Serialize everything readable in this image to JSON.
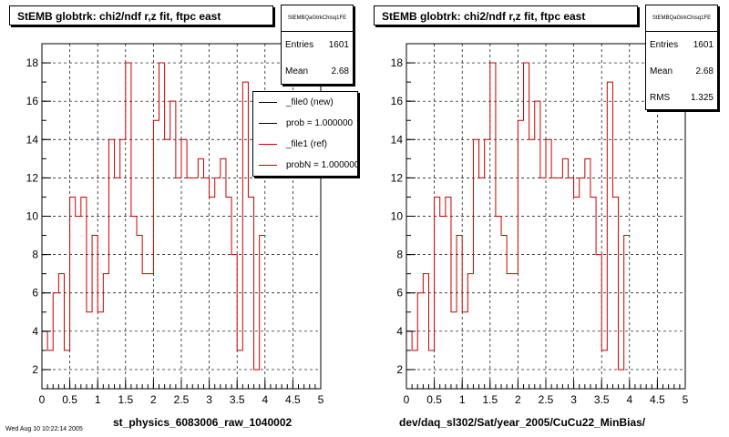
{
  "colors": {
    "hist": "#cc0000",
    "frame": "#000000",
    "legend_new": "#000000",
    "legend_ref": "#cc0000"
  },
  "left_pad": {
    "title": "StEMB globtrk: chi2/ndf r,z fit, ftpc east",
    "stats": {
      "name": "StEMBQaGtrkChisq1FE",
      "entries_label": "Entries",
      "entries": "1601",
      "mean_label": "Mean",
      "mean": "2.68"
    },
    "legend": [
      {
        "label": "_file0 (new)",
        "color": "#000000"
      },
      {
        "label": "prob = 1.000000",
        "color": "#000000"
      },
      {
        "label": "_file1 (ref)",
        "color": "#cc0000"
      },
      {
        "label": "probN = 1.000000",
        "color": "#cc0000"
      }
    ],
    "xtitle": "st_physics_6083006_raw_1040002",
    "footer": "Wed Aug 10 10:22:14 2005"
  },
  "right_pad": {
    "title": "StEMB globtrk: chi2/ndf r,z fit, ftpc east",
    "stats": {
      "name": "StEMBQaGtrkChisq1FE",
      "entries_label": "Entries",
      "entries": "1601",
      "mean_label": "Mean",
      "mean": "2.68",
      "rms_label": "RMS",
      "rms": "1.325"
    },
    "xtitle": "dev/daq_sl302/Sat/year_2005/CuCu22_MinBias/"
  },
  "chart_data": [
    {
      "type": "step",
      "xlim": [
        0,
        5
      ],
      "ylim": [
        1,
        19
      ],
      "grid": true,
      "xticks": [
        "0",
        "0.5",
        "1",
        "1.5",
        "2",
        "2.5",
        "3",
        "3.5",
        "4",
        "4.5",
        "5"
      ],
      "yticks": [
        "2",
        "4",
        "6",
        "8",
        "10",
        "12",
        "14",
        "16",
        "18"
      ],
      "bin_width": 0.1,
      "bin_edges_start": 0,
      "values": [
        4,
        3,
        6,
        7,
        3,
        11,
        10,
        11,
        5,
        9,
        5,
        7,
        14,
        12,
        14,
        18,
        10,
        9,
        7,
        7,
        15,
        18,
        14,
        16,
        12,
        14,
        12,
        12,
        13,
        12,
        11,
        12,
        13,
        11,
        8,
        3,
        17,
        11,
        2,
        9
      ],
      "series": [
        {
          "name": "_file1 (ref)",
          "color": "#cc0000"
        }
      ]
    },
    {
      "type": "step",
      "xlim": [
        0,
        5
      ],
      "ylim": [
        1,
        19
      ],
      "grid": true,
      "xticks": [
        "0",
        "0.5",
        "1",
        "1.5",
        "2",
        "2.5",
        "3",
        "3.5",
        "4",
        "4.5",
        "5"
      ],
      "yticks": [
        "2",
        "4",
        "6",
        "8",
        "10",
        "12",
        "14",
        "16",
        "18"
      ],
      "bin_width": 0.1,
      "bin_edges_start": 0,
      "values": [
        4,
        3,
        6,
        7,
        3,
        11,
        10,
        11,
        5,
        9,
        5,
        7,
        14,
        12,
        14,
        18,
        10,
        9,
        7,
        7,
        15,
        18,
        14,
        16,
        12,
        14,
        12,
        12,
        13,
        12,
        11,
        12,
        13,
        11,
        8,
        3,
        17,
        11,
        2,
        9
      ],
      "series": [
        {
          "name": "_file1 (ref)",
          "color": "#cc0000"
        }
      ]
    }
  ]
}
